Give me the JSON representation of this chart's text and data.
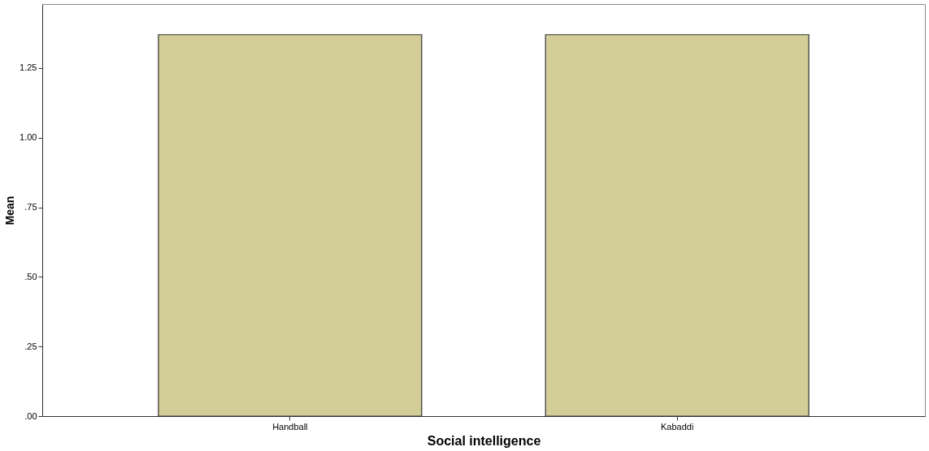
{
  "chart_data": {
    "type": "bar",
    "xlabel": "Social intelligence",
    "ylabel": "Mean",
    "categories": [
      "Handball",
      "Kabaddi"
    ],
    "values": [
      1.37,
      1.37
    ],
    "color": "#d3cd98",
    "ylim": [
      0,
      1.48
    ],
    "yticks": [
      {
        "value": 0,
        "label": ".00"
      },
      {
        "value": 0.25,
        "label": ".25"
      },
      {
        "value": 0.5,
        "label": ".50"
      },
      {
        "value": 0.75,
        "label": ".75"
      },
      {
        "value": 1.0,
        "label": "1.00"
      },
      {
        "value": 1.25,
        "label": "1.25"
      }
    ],
    "grid": false
  }
}
